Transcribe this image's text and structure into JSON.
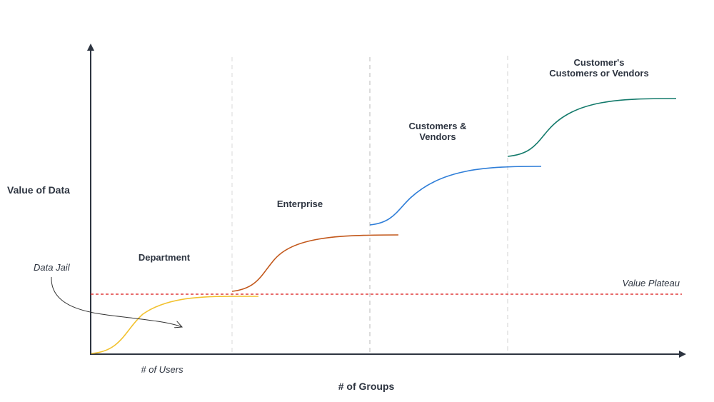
{
  "axes": {
    "y_label": "Value of Data",
    "x_label": "# of Groups",
    "x_sublabel": "# of Users"
  },
  "stages": [
    {
      "lines": [
        "Department"
      ],
      "color": "#f2c230"
    },
    {
      "lines": [
        "Enterprise"
      ],
      "color": "#c2571a"
    },
    {
      "lines": [
        "Customers &",
        "Vendors"
      ],
      "color": "#2f7ed8"
    },
    {
      "lines": [
        "Customer's",
        "Customers or Vendors"
      ],
      "color": "#137a6b"
    }
  ],
  "annotations": {
    "data_jail": "Data Jail",
    "value_plateau": "Value Plateau",
    "plateau_color": "#e03a3a"
  }
}
